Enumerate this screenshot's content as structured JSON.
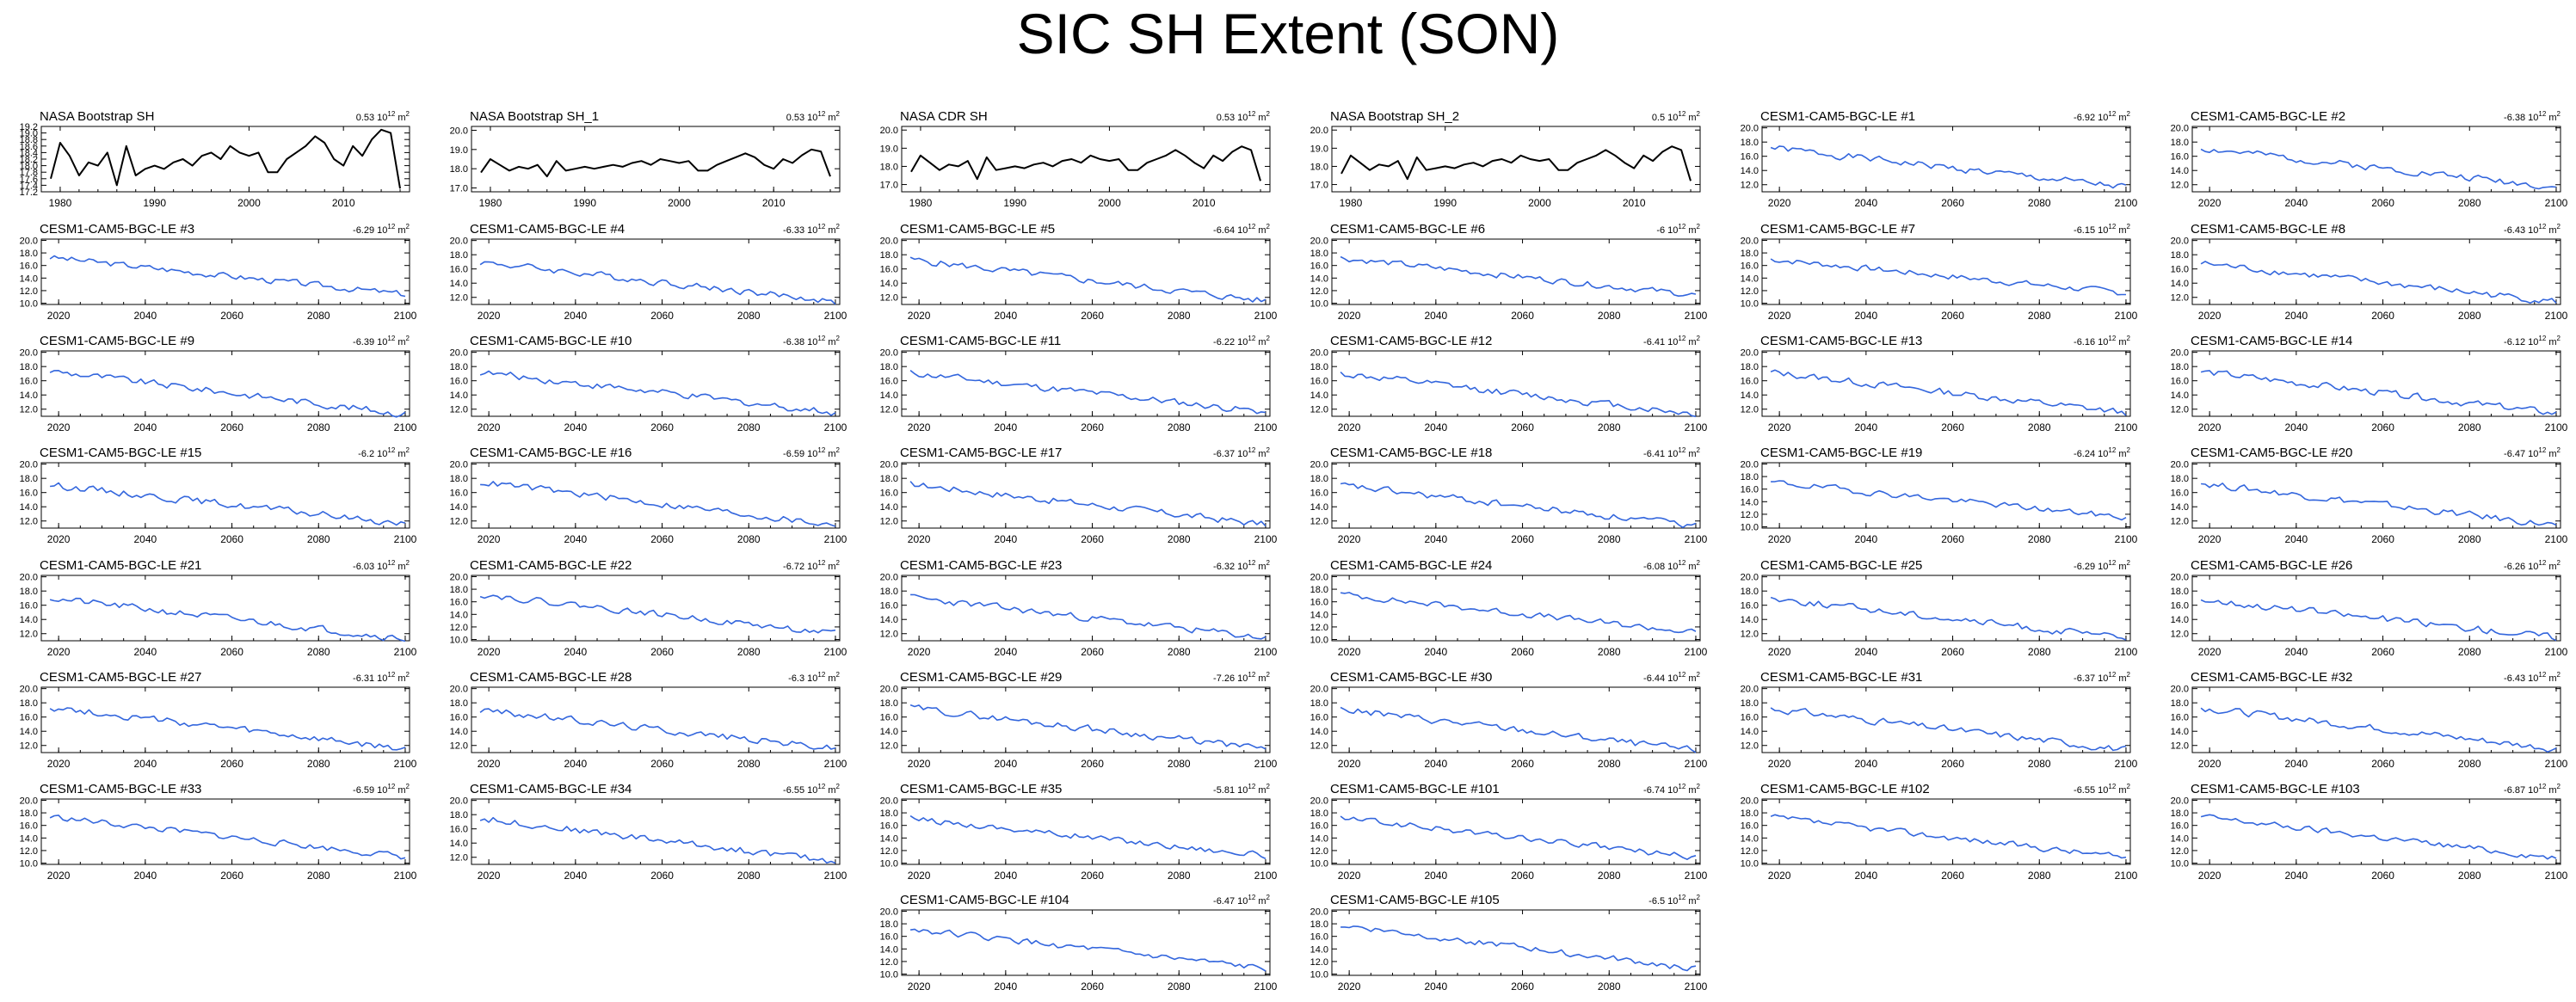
{
  "figure": {
    "title": "SIC SH Extent (SON)",
    "unit_base": "10",
    "unit_exp": "12",
    "unit_suffix": "m",
    "unit_sup": "2",
    "line_colors": {
      "observation": "#000000",
      "model": "#3366dd"
    }
  },
  "chart_data": [
    {
      "type": "line",
      "title": "NASA Bootstrap SH",
      "trend": "0.53",
      "kind": "obs",
      "xlim": [
        1978,
        2017
      ],
      "xticks": [
        1980,
        1990,
        2000,
        2010
      ],
      "ylim": [
        17.2,
        19.2
      ],
      "yticks": [
        "17.2",
        "17.4",
        "17.6",
        "17.8",
        "18.0",
        "18.2",
        "18.4",
        "18.6",
        "18.8",
        "19.0",
        "19.2"
      ],
      "x": [
        1979,
        1980,
        1981,
        1982,
        1983,
        1984,
        1985,
        1986,
        1987,
        1988,
        1989,
        1990,
        1991,
        1992,
        1993,
        1994,
        1995,
        1996,
        1997,
        1998,
        1999,
        2000,
        2001,
        2002,
        2003,
        2004,
        2005,
        2006,
        2007,
        2008,
        2009,
        2010,
        2011,
        2012,
        2013,
        2014,
        2015,
        2016
      ],
      "y": [
        17.6,
        18.7,
        18.3,
        17.7,
        18.1,
        18.0,
        18.4,
        17.4,
        18.6,
        17.7,
        17.9,
        18.0,
        17.9,
        18.1,
        18.2,
        18.0,
        18.3,
        18.4,
        18.2,
        18.6,
        18.4,
        18.3,
        18.4,
        17.8,
        17.8,
        18.2,
        18.4,
        18.6,
        18.9,
        18.7,
        18.2,
        18.0,
        18.6,
        18.3,
        18.8,
        19.1,
        19.0,
        17.3
      ]
    },
    {
      "type": "line",
      "title": "NASA Bootstrap SH_1",
      "trend": "0.53",
      "kind": "obs",
      "xlim": [
        1978,
        2017
      ],
      "xticks": [
        1980,
        1990,
        2000,
        2010
      ],
      "ylim": [
        16.8,
        20.2
      ],
      "yticks": [
        "17.0",
        "18.0",
        "19.0",
        "20.0"
      ],
      "x": [
        1979,
        1980,
        1981,
        1982,
        1983,
        1984,
        1985,
        1986,
        1987,
        1988,
        1989,
        1990,
        1991,
        1992,
        1993,
        1994,
        1995,
        1996,
        1997,
        1998,
        1999,
        2000,
        2001,
        2002,
        2003,
        2004,
        2005,
        2006,
        2007,
        2008,
        2009,
        2010,
        2011,
        2012,
        2013,
        2014,
        2015,
        2016
      ],
      "y": [
        17.8,
        18.5,
        18.2,
        17.9,
        18.1,
        18.0,
        18.2,
        17.6,
        18.4,
        17.9,
        18.0,
        18.1,
        18.0,
        18.1,
        18.2,
        18.1,
        18.3,
        18.4,
        18.2,
        18.5,
        18.4,
        18.3,
        18.4,
        17.9,
        17.9,
        18.2,
        18.4,
        18.6,
        18.8,
        18.6,
        18.2,
        18.0,
        18.5,
        18.3,
        18.7,
        19.0,
        18.9,
        17.6
      ]
    },
    {
      "type": "line",
      "title": "NASA CDR SH",
      "trend": "0.53",
      "kind": "obs",
      "xlim": [
        1978,
        2017
      ],
      "xticks": [
        1980,
        1990,
        2000,
        2010
      ],
      "ylim": [
        16.6,
        20.2
      ],
      "yticks": [
        "17.0",
        "18.0",
        "19.0",
        "20.0"
      ],
      "x": [
        1979,
        1980,
        1981,
        1982,
        1983,
        1984,
        1985,
        1986,
        1987,
        1988,
        1989,
        1990,
        1991,
        1992,
        1993,
        1994,
        1995,
        1996,
        1997,
        1998,
        1999,
        2000,
        2001,
        2002,
        2003,
        2004,
        2005,
        2006,
        2007,
        2008,
        2009,
        2010,
        2011,
        2012,
        2013,
        2014,
        2015,
        2016
      ],
      "y": [
        17.7,
        18.6,
        18.2,
        17.8,
        18.1,
        18.0,
        18.3,
        17.3,
        18.5,
        17.8,
        17.9,
        18.0,
        17.9,
        18.1,
        18.2,
        18.0,
        18.3,
        18.4,
        18.2,
        18.6,
        18.4,
        18.3,
        18.4,
        17.8,
        17.8,
        18.2,
        18.4,
        18.6,
        18.9,
        18.6,
        18.2,
        17.9,
        18.6,
        18.3,
        18.8,
        19.1,
        18.9,
        17.2
      ]
    },
    {
      "type": "line",
      "title": "NASA Bootstrap SH_2",
      "trend": "0.5",
      "kind": "obs",
      "xlim": [
        1978,
        2017
      ],
      "xticks": [
        1980,
        1990,
        2000,
        2010
      ],
      "ylim": [
        16.6,
        20.2
      ],
      "yticks": [
        "17.0",
        "18.0",
        "19.0",
        "20.0"
      ],
      "x": [
        1979,
        1980,
        1981,
        1982,
        1983,
        1984,
        1985,
        1986,
        1987,
        1988,
        1989,
        1990,
        1991,
        1992,
        1993,
        1994,
        1995,
        1996,
        1997,
        1998,
        1999,
        2000,
        2001,
        2002,
        2003,
        2004,
        2005,
        2006,
        2007,
        2008,
        2009,
        2010,
        2011,
        2012,
        2013,
        2014,
        2015,
        2016
      ],
      "y": [
        17.6,
        18.6,
        18.2,
        17.8,
        18.1,
        18.0,
        18.3,
        17.3,
        18.5,
        17.8,
        17.9,
        18.0,
        17.9,
        18.1,
        18.2,
        18.0,
        18.3,
        18.4,
        18.2,
        18.6,
        18.4,
        18.3,
        18.4,
        17.8,
        17.8,
        18.2,
        18.4,
        18.6,
        18.9,
        18.6,
        18.2,
        17.9,
        18.6,
        18.3,
        18.8,
        19.1,
        18.9,
        17.2
      ]
    },
    {
      "type": "line",
      "title": "CESM1-CAM5-BGC-LE #1",
      "trend": "-6.92",
      "kind": "model",
      "start": 17.2,
      "end": 11.6,
      "seed": 1
    },
    {
      "type": "line",
      "title": "CESM1-CAM5-BGC-LE #2",
      "trend": "-6.38",
      "kind": "model",
      "start": 17.1,
      "end": 11.7,
      "seed": 2
    },
    {
      "type": "line",
      "title": "CESM1-CAM5-BGC-LE #3",
      "trend": "-6.29",
      "kind": "model",
      "start": 17.3,
      "end": 11.4,
      "seed": 3
    },
    {
      "type": "line",
      "title": "CESM1-CAM5-BGC-LE #4",
      "trend": "-6.33",
      "kind": "model",
      "start": 17.0,
      "end": 11.4,
      "seed": 4
    },
    {
      "type": "line",
      "title": "CESM1-CAM5-BGC-LE #5",
      "trend": "-6.64",
      "kind": "model",
      "start": 17.3,
      "end": 11.5,
      "seed": 5
    },
    {
      "type": "line",
      "title": "CESM1-CAM5-BGC-LE #6",
      "trend": "-6",
      "kind": "model",
      "start": 17.2,
      "end": 11.3,
      "seed": 6
    },
    {
      "type": "line",
      "title": "CESM1-CAM5-BGC-LE #7",
      "trend": "-6.15",
      "kind": "model",
      "start": 17.0,
      "end": 11.6,
      "seed": 7
    },
    {
      "type": "line",
      "title": "CESM1-CAM5-BGC-LE #8",
      "trend": "-6.43",
      "kind": "model",
      "start": 16.8,
      "end": 11.4,
      "seed": 8
    },
    {
      "type": "line",
      "title": "CESM1-CAM5-BGC-LE #9",
      "trend": "-6.39",
      "kind": "model",
      "start": 17.4,
      "end": 11.3,
      "seed": 9
    },
    {
      "type": "line",
      "title": "CESM1-CAM5-BGC-LE #10",
      "trend": "-6.38",
      "kind": "model",
      "start": 17.2,
      "end": 11.5,
      "seed": 10
    },
    {
      "type": "line",
      "title": "CESM1-CAM5-BGC-LE #11",
      "trend": "-6.22",
      "kind": "model",
      "start": 17.1,
      "end": 11.6,
      "seed": 11
    },
    {
      "type": "line",
      "title": "CESM1-CAM5-BGC-LE #12",
      "trend": "-6.41",
      "kind": "model",
      "start": 17.0,
      "end": 11.3,
      "seed": 12
    },
    {
      "type": "line",
      "title": "CESM1-CAM5-BGC-LE #13",
      "trend": "-6.16",
      "kind": "model",
      "start": 17.2,
      "end": 11.5,
      "seed": 13
    },
    {
      "type": "line",
      "title": "CESM1-CAM5-BGC-LE #14",
      "trend": "-6.12",
      "kind": "model",
      "start": 17.3,
      "end": 11.4,
      "seed": 14
    },
    {
      "type": "line",
      "title": "CESM1-CAM5-BGC-LE #15",
      "trend": "-6.2",
      "kind": "model",
      "start": 17.1,
      "end": 11.6,
      "seed": 15
    },
    {
      "type": "line",
      "title": "CESM1-CAM5-BGC-LE #16",
      "trend": "-6.59",
      "kind": "model",
      "start": 17.5,
      "end": 11.4,
      "seed": 16
    },
    {
      "type": "line",
      "title": "CESM1-CAM5-BGC-LE #17",
      "trend": "-6.37",
      "kind": "model",
      "start": 17.2,
      "end": 11.5,
      "seed": 17
    },
    {
      "type": "line",
      "title": "CESM1-CAM5-BGC-LE #18",
      "trend": "-6.41",
      "kind": "model",
      "start": 17.0,
      "end": 11.3,
      "seed": 18
    },
    {
      "type": "line",
      "title": "CESM1-CAM5-BGC-LE #19",
      "trend": "-6.24",
      "kind": "model",
      "start": 17.1,
      "end": 11.5,
      "seed": 19
    },
    {
      "type": "line",
      "title": "CESM1-CAM5-BGC-LE #20",
      "trend": "-6.47",
      "kind": "model",
      "start": 17.3,
      "end": 11.4,
      "seed": 20
    },
    {
      "type": "line",
      "title": "CESM1-CAM5-BGC-LE #21",
      "trend": "-6.03",
      "kind": "model",
      "start": 17.0,
      "end": 11.3,
      "seed": 21
    },
    {
      "type": "line",
      "title": "CESM1-CAM5-BGC-LE #22",
      "trend": "-6.72",
      "kind": "model",
      "start": 17.2,
      "end": 10.9,
      "seed": 22
    },
    {
      "type": "line",
      "title": "CESM1-CAM5-BGC-LE #23",
      "trend": "-6.32",
      "kind": "model",
      "start": 17.1,
      "end": 11.4,
      "seed": 23
    },
    {
      "type": "line",
      "title": "CESM1-CAM5-BGC-LE #24",
      "trend": "-6.08",
      "kind": "model",
      "start": 17.2,
      "end": 11.1,
      "seed": 24
    },
    {
      "type": "line",
      "title": "CESM1-CAM5-BGC-LE #25",
      "trend": "-6.29",
      "kind": "model",
      "start": 17.0,
      "end": 11.3,
      "seed": 25
    },
    {
      "type": "line",
      "title": "CESM1-CAM5-BGC-LE #26",
      "trend": "-6.26",
      "kind": "model",
      "start": 16.8,
      "end": 11.5,
      "seed": 26
    },
    {
      "type": "line",
      "title": "CESM1-CAM5-BGC-LE #27",
      "trend": "-6.31",
      "kind": "model",
      "start": 17.4,
      "end": 11.4,
      "seed": 27
    },
    {
      "type": "line",
      "title": "CESM1-CAM5-BGC-LE #28",
      "trend": "-6.3",
      "kind": "model",
      "start": 17.0,
      "end": 11.6,
      "seed": 28
    },
    {
      "type": "line",
      "title": "CESM1-CAM5-BGC-LE #29",
      "trend": "-7.26",
      "kind": "model",
      "start": 17.3,
      "end": 11.5,
      "seed": 29
    },
    {
      "type": "line",
      "title": "CESM1-CAM5-BGC-LE #30",
      "trend": "-6.44",
      "kind": "model",
      "start": 17.1,
      "end": 11.3,
      "seed": 30
    },
    {
      "type": "line",
      "title": "CESM1-CAM5-BGC-LE #31",
      "trend": "-6.37",
      "kind": "model",
      "start": 17.2,
      "end": 11.4,
      "seed": 31
    },
    {
      "type": "line",
      "title": "CESM1-CAM5-BGC-LE #32",
      "trend": "-6.43",
      "kind": "model",
      "start": 17.3,
      "end": 11.5,
      "seed": 32
    },
    {
      "type": "line",
      "title": "CESM1-CAM5-BGC-LE #33",
      "trend": "-6.59",
      "kind": "model",
      "start": 17.4,
      "end": 11.0,
      "seed": 33
    },
    {
      "type": "line",
      "title": "CESM1-CAM5-BGC-LE #34",
      "trend": "-6.55",
      "kind": "model",
      "start": 17.5,
      "end": 11.4,
      "seed": 34
    },
    {
      "type": "line",
      "title": "CESM1-CAM5-BGC-LE #35",
      "trend": "-5.81",
      "kind": "model",
      "start": 17.1,
      "end": 11.2,
      "seed": 35
    },
    {
      "type": "line",
      "title": "CESM1-CAM5-BGC-LE #101",
      "trend": "-6.74",
      "kind": "model",
      "start": 17.2,
      "end": 10.9,
      "seed": 36
    },
    {
      "type": "line",
      "title": "CESM1-CAM5-BGC-LE #102",
      "trend": "-6.55",
      "kind": "model",
      "start": 17.3,
      "end": 10.9,
      "seed": 37
    },
    {
      "type": "line",
      "title": "CESM1-CAM5-BGC-LE #103",
      "trend": "-6.87",
      "kind": "model",
      "start": 17.4,
      "end": 10.8,
      "seed": 38
    },
    {
      "type": "line",
      "title": "CESM1-CAM5-BGC-LE #104",
      "trend": "-6.47",
      "kind": "model",
      "start": 17.2,
      "end": 10.8,
      "seed": 39
    },
    {
      "type": "line",
      "title": "CESM1-CAM5-BGC-LE #105",
      "trend": "-6.5",
      "kind": "model",
      "start": 17.8,
      "end": 10.8,
      "seed": 40
    }
  ],
  "model_axes": {
    "xlim": [
      2016,
      2101
    ],
    "xticks": [
      2020,
      2040,
      2060,
      2080,
      2100
    ],
    "ylim_a": [
      11.0,
      20.2
    ],
    "yticks_a": [
      "12.0",
      "14.0",
      "16.0",
      "18.0",
      "20.0"
    ],
    "ylim_b": [
      9.8,
      20.2
    ],
    "yticks_b": [
      "10.0",
      "12.0",
      "14.0",
      "16.0",
      "18.0",
      "20.0"
    ],
    "wide_range_panels": [
      3,
      6,
      7,
      19,
      22,
      24,
      33,
      35,
      36,
      37,
      38,
      39,
      40
    ]
  }
}
